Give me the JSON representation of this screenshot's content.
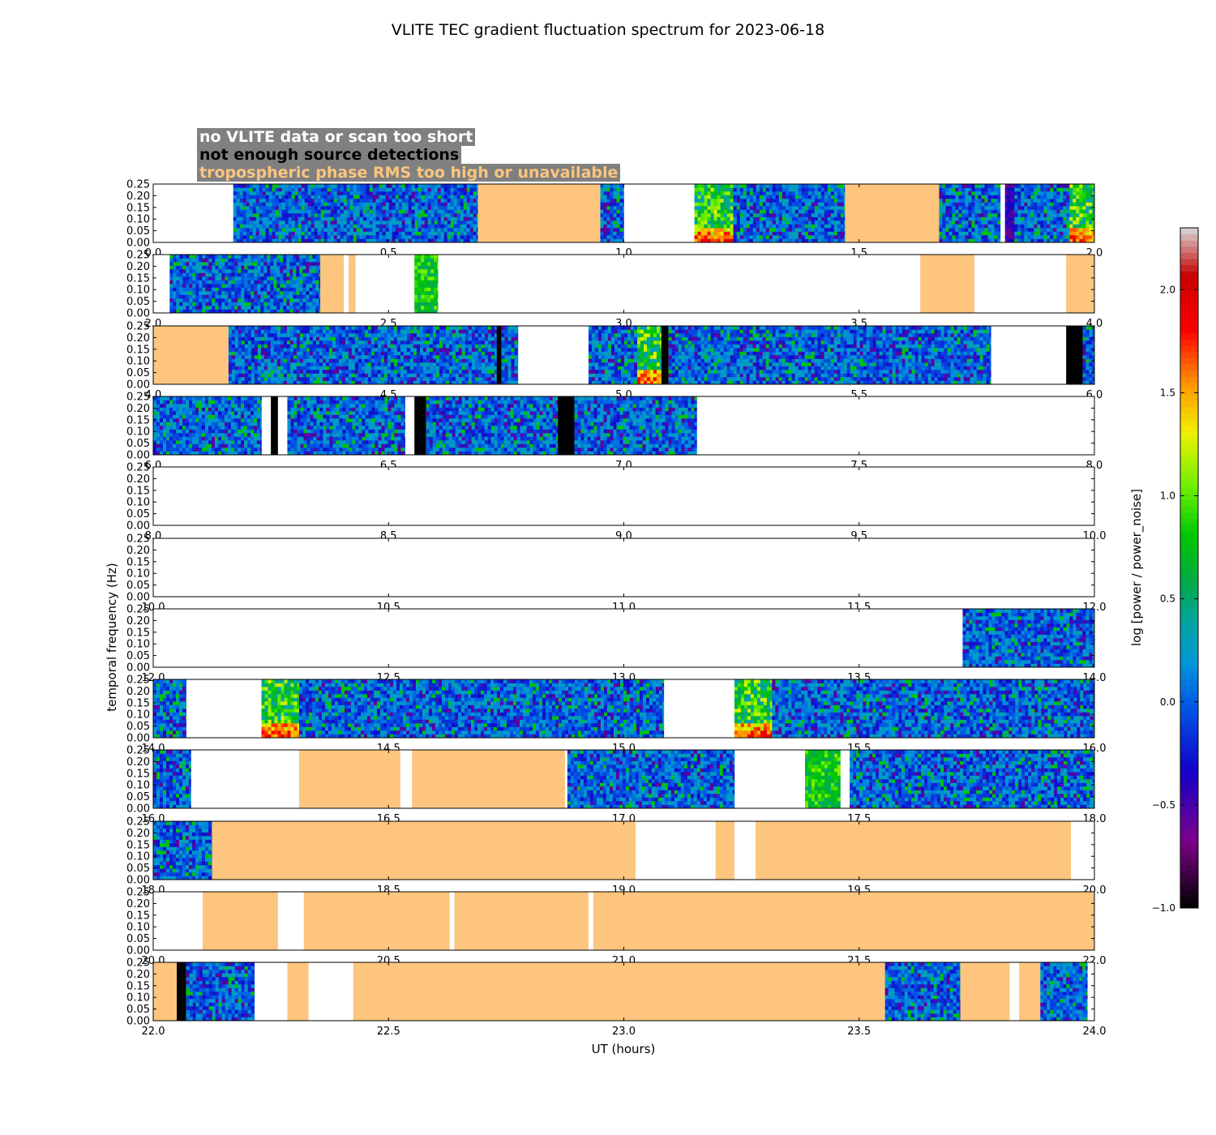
{
  "chart_data": {
    "type": "heatmap",
    "title": "VLITE TEC gradient fluctuation spectrum for 2023-06-18",
    "xlabel": "UT (hours)",
    "ylabel": "temporal frequency (Hz)",
    "ylim": [
      0,
      0.25
    ],
    "y_ticks": [
      "0.00",
      "0.05",
      "0.10",
      "0.15",
      "0.20",
      "0.25"
    ],
    "colorbar": {
      "label": "log [power / power_noise]",
      "range": [
        -1.0,
        2.3
      ],
      "ticks": [
        "−1.0",
        "−0.5",
        "0.0",
        "0.5",
        "1.0",
        "1.5",
        "2.0"
      ],
      "tick_values": [
        -1.0,
        -0.5,
        0.0,
        0.5,
        1.0,
        1.5,
        2.0
      ]
    },
    "legend": [
      {
        "label": "no VLITE data or scan too short",
        "color": "#ffffff"
      },
      {
        "label": "not enough source detections",
        "color": "#000000"
      },
      {
        "label": "tropospheric phase RMS too high or unavailable",
        "color": "#fdc57e"
      }
    ],
    "segment_colors": {
      "data": "spectrum",
      "nodata": "#ffffff",
      "nodet": "#000000",
      "trop": "#fdc57e"
    },
    "panels": [
      {
        "range": [
          0,
          2
        ],
        "x_ticks": [
          "0.0",
          "0.5",
          "1.0",
          "1.5",
          "2.0"
        ],
        "segments": [
          [
            "data",
            0.17,
            0.69,
            "",
            ""
          ],
          [
            "trop",
            0.69,
            0.95
          ],
          [
            "data",
            0.95,
            1.0,
            "",
            ""
          ],
          [
            "data",
            1.15,
            1.24,
            "h",
            ""
          ],
          [
            "data",
            1.24,
            1.47,
            "",
            ""
          ],
          [
            "trop",
            1.47,
            1.67
          ],
          [
            "data",
            1.67,
            1.8,
            "",
            ""
          ],
          [
            "data",
            1.81,
            1.83,
            "b",
            ""
          ],
          [
            "data",
            1.83,
            2.0,
            "",
            "h"
          ]
        ]
      },
      {
        "range": [
          2,
          4
        ],
        "x_ticks": [
          "2.0",
          "2.5",
          "3.0",
          "3.5",
          "4.0"
        ],
        "segments": [
          [
            "data",
            2.035,
            2.355,
            "",
            ""
          ],
          [
            "trop",
            2.355,
            2.405
          ],
          [
            "trop",
            2.415,
            2.43
          ],
          [
            "data",
            2.555,
            2.605,
            "g",
            ""
          ],
          [
            "trop",
            3.63,
            3.745
          ],
          [
            "trop",
            3.94,
            4.0
          ]
        ]
      },
      {
        "range": [
          4,
          6
        ],
        "x_ticks": [
          "4.0",
          "4.5",
          "5.0",
          "5.5",
          "6.0"
        ],
        "segments": [
          [
            "trop",
            4.0,
            4.16
          ],
          [
            "data",
            4.16,
            4.73,
            "",
            ""
          ],
          [
            "nodet",
            4.73,
            4.74
          ],
          [
            "data",
            4.74,
            4.775,
            "",
            ""
          ],
          [
            "data",
            4.925,
            5.08,
            "",
            "h"
          ],
          [
            "nodet",
            5.08,
            5.095
          ],
          [
            "data",
            5.095,
            5.78,
            "",
            ""
          ],
          [
            "nodet",
            5.94,
            5.975
          ],
          [
            "data",
            5.975,
            6.0,
            "",
            ""
          ]
        ]
      },
      {
        "range": [
          6,
          8
        ],
        "x_ticks": [
          "6.0",
          "6.5",
          "7.0",
          "7.5",
          "8.0"
        ],
        "segments": [
          [
            "data",
            6.0,
            6.23,
            "",
            ""
          ],
          [
            "nodet",
            6.25,
            6.265
          ],
          [
            "data",
            6.285,
            6.535,
            "",
            ""
          ],
          [
            "nodet",
            6.555,
            6.58
          ],
          [
            "data",
            6.58,
            6.86,
            "",
            ""
          ],
          [
            "nodet",
            6.86,
            6.895
          ],
          [
            "data",
            6.895,
            7.155,
            "",
            ""
          ]
        ]
      },
      {
        "range": [
          8,
          10
        ],
        "x_ticks": [
          "8.0",
          "8.5",
          "9.0",
          "9.5",
          "10.0"
        ],
        "segments": []
      },
      {
        "range": [
          10,
          12
        ],
        "x_ticks": [
          "10.0",
          "10.5",
          "11.0",
          "11.5",
          "12.0"
        ],
        "segments": []
      },
      {
        "range": [
          12,
          14
        ],
        "x_ticks": [
          "12.0",
          "12.5",
          "13.0",
          "13.5",
          "14.0"
        ],
        "segments": [
          [
            "data",
            13.72,
            14.0,
            "",
            ""
          ]
        ]
      },
      {
        "range": [
          14,
          16
        ],
        "x_ticks": [
          "14.0",
          "14.5",
          "15.0",
          "15.5",
          "16.0"
        ],
        "segments": [
          [
            "data",
            14.0,
            14.07,
            "",
            ""
          ],
          [
            "data",
            14.23,
            14.31,
            "h",
            ""
          ],
          [
            "data",
            14.31,
            15.085,
            "",
            ""
          ],
          [
            "data",
            15.235,
            15.315,
            "h",
            ""
          ],
          [
            "data",
            15.315,
            16.0,
            "",
            ""
          ]
        ]
      },
      {
        "range": [
          16,
          18
        ],
        "x_ticks": [
          "16.0",
          "16.5",
          "17.0",
          "17.5",
          "18.0"
        ],
        "segments": [
          [
            "data",
            16.0,
            16.08,
            "",
            ""
          ],
          [
            "trop",
            16.31,
            16.525
          ],
          [
            "trop",
            16.55,
            16.875
          ],
          [
            "data",
            16.88,
            17.235,
            "",
            ""
          ],
          [
            "data",
            17.385,
            17.46,
            "g",
            ""
          ],
          [
            "data",
            17.48,
            18.0,
            "",
            ""
          ]
        ]
      },
      {
        "range": [
          18,
          20
        ],
        "x_ticks": [
          "18.0",
          "18.5",
          "19.0",
          "19.5",
          "20.0"
        ],
        "segments": [
          [
            "data",
            18.0,
            18.125,
            "",
            ""
          ],
          [
            "trop",
            18.125,
            19.025
          ],
          [
            "trop",
            19.195,
            19.235
          ],
          [
            "trop",
            19.28,
            19.95
          ]
        ]
      },
      {
        "range": [
          20,
          22
        ],
        "x_ticks": [
          "20.0",
          "20.5",
          "21.0",
          "21.5",
          "22.0"
        ],
        "segments": [
          [
            "trop",
            20.105,
            20.265
          ],
          [
            "trop",
            20.32,
            20.63
          ],
          [
            "trop",
            20.64,
            20.925
          ],
          [
            "trop",
            20.935,
            22.0
          ]
        ]
      },
      {
        "range": [
          22,
          24
        ],
        "x_ticks": [
          "22.0",
          "22.5",
          "23.0",
          "23.5",
          "24.0"
        ],
        "segments": [
          [
            "trop",
            22.0,
            22.05
          ],
          [
            "nodet",
            22.05,
            22.07
          ],
          [
            "data",
            22.07,
            22.215,
            "",
            ""
          ],
          [
            "trop",
            22.285,
            22.33
          ],
          [
            "trop",
            22.425,
            23.555
          ],
          [
            "data",
            23.555,
            23.715,
            "",
            ""
          ],
          [
            "trop",
            23.715,
            23.82
          ],
          [
            "trop",
            23.84,
            23.885
          ],
          [
            "data",
            23.885,
            23.985,
            "",
            ""
          ]
        ]
      }
    ]
  }
}
